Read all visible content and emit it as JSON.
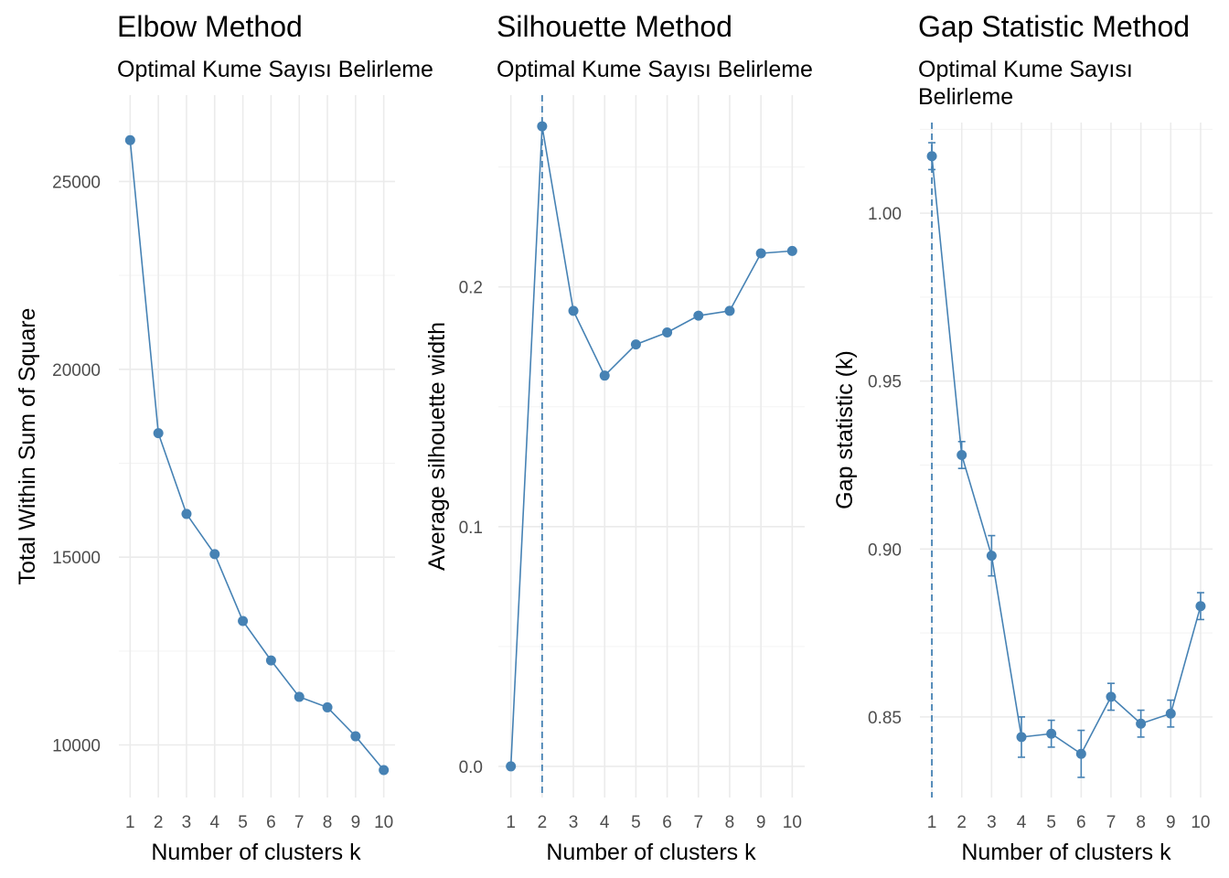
{
  "chart_data": [
    {
      "type": "line",
      "title": "Elbow Method",
      "subtitle": "Optimal Kume Sayısı Belirleme",
      "xlabel": "Number of clusters k",
      "ylabel": "Total Within Sum of Square",
      "x": [
        1,
        2,
        3,
        4,
        5,
        6,
        7,
        8,
        9,
        10
      ],
      "x_tick_labels": [
        "1",
        "2",
        "3",
        "4",
        "5",
        "6",
        "7",
        "8",
        "9",
        "10"
      ],
      "y": [
        26100,
        18300,
        16150,
        15080,
        13300,
        12250,
        11280,
        11000,
        10230,
        9330
      ],
      "y_ticks": [
        10000,
        15000,
        20000,
        25000
      ],
      "y_tick_labels": [
        "10000",
        "15000",
        "20000",
        "25000"
      ],
      "ylim": [
        8600,
        27300
      ],
      "grid": true,
      "color": "#4682b4"
    },
    {
      "type": "line",
      "title": "Silhouette Method",
      "subtitle": "Optimal Kume Sayısı Belirleme",
      "xlabel": "Number of clusters k",
      "ylabel": "Average silhouette width",
      "x": [
        1,
        2,
        3,
        4,
        5,
        6,
        7,
        8,
        9,
        10
      ],
      "x_tick_labels": [
        "1",
        "2",
        "3",
        "4",
        "5",
        "6",
        "7",
        "8",
        "9",
        "10"
      ],
      "y": [
        0.0,
        0.267,
        0.19,
        0.163,
        0.176,
        0.181,
        0.188,
        0.19,
        0.214,
        0.215
      ],
      "y_ticks": [
        0.0,
        0.1,
        0.2
      ],
      "y_tick_labels": [
        "0.0",
        "0.1",
        "0.2"
      ],
      "ylim": [
        -0.013,
        0.28
      ],
      "optimal_k": 2,
      "grid": true,
      "color": "#4682b4"
    },
    {
      "type": "line",
      "title": "Gap Statistic Method",
      "subtitle_lines": [
        "Optimal Kume Sayısı",
        "Belirleme"
      ],
      "xlabel": "Number of clusters k",
      "ylabel": "Gap statistic (k)",
      "x": [
        1,
        2,
        3,
        4,
        5,
        6,
        7,
        8,
        9,
        10
      ],
      "x_tick_labels": [
        "1",
        "2",
        "3",
        "4",
        "5",
        "6",
        "7",
        "8",
        "9",
        "10"
      ],
      "y": [
        1.017,
        0.928,
        0.898,
        0.844,
        0.845,
        0.839,
        0.856,
        0.848,
        0.851,
        0.883
      ],
      "y_err": [
        0.004,
        0.004,
        0.006,
        0.006,
        0.004,
        0.007,
        0.004,
        0.004,
        0.004,
        0.004
      ],
      "y_ticks": [
        0.85,
        0.9,
        0.95,
        1.0
      ],
      "y_tick_labels": [
        "0.85",
        "0.90",
        "0.95",
        "1.00"
      ],
      "ylim": [
        0.826,
        1.027
      ],
      "optimal_k": 1,
      "grid": true,
      "color": "#4682b4"
    }
  ]
}
